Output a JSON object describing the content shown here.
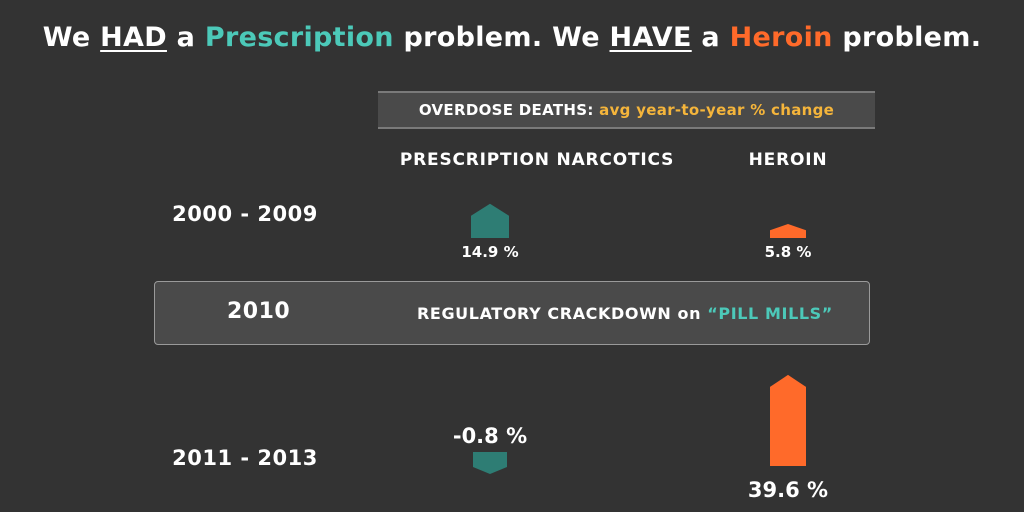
{
  "headline": {
    "part1": "We ",
    "had": "HAD",
    "part2": " a ",
    "prescription": "Prescription",
    "part3": " problem. We ",
    "have": "HAVE",
    "part4": " a ",
    "heroin": "Heroin",
    "part5": " problem."
  },
  "band": {
    "prefix": "OVERDOSE DEATHS:",
    "suffix": "avg year-to-year % change"
  },
  "crackdown": {
    "year": "2010",
    "label": "REGULATORY CRACKDOWN on",
    "quote": "“PILL MILLS”"
  },
  "colors": {
    "prescription": "#2e7d74",
    "heroin": "#ff6a2a",
    "accent_teal": "#4cc9b9",
    "accent_gold": "#f5b53b",
    "background": "#333333"
  },
  "chart_data": {
    "type": "bar",
    "title": "OVERDOSE DEATHS: avg year-to-year % change",
    "categories": [
      "2000 - 2009",
      "2011 - 2013"
    ],
    "series": [
      {
        "name": "PRESCRIPTION NARCOTICS",
        "values": [
          14.9,
          -0.8
        ],
        "labels": [
          "14.9 %",
          "-0.8 %"
        ]
      },
      {
        "name": "HEROIN",
        "values": [
          5.8,
          39.6
        ],
        "labels": [
          "5.8 %",
          "39.6 %"
        ]
      }
    ],
    "unit": "%"
  }
}
